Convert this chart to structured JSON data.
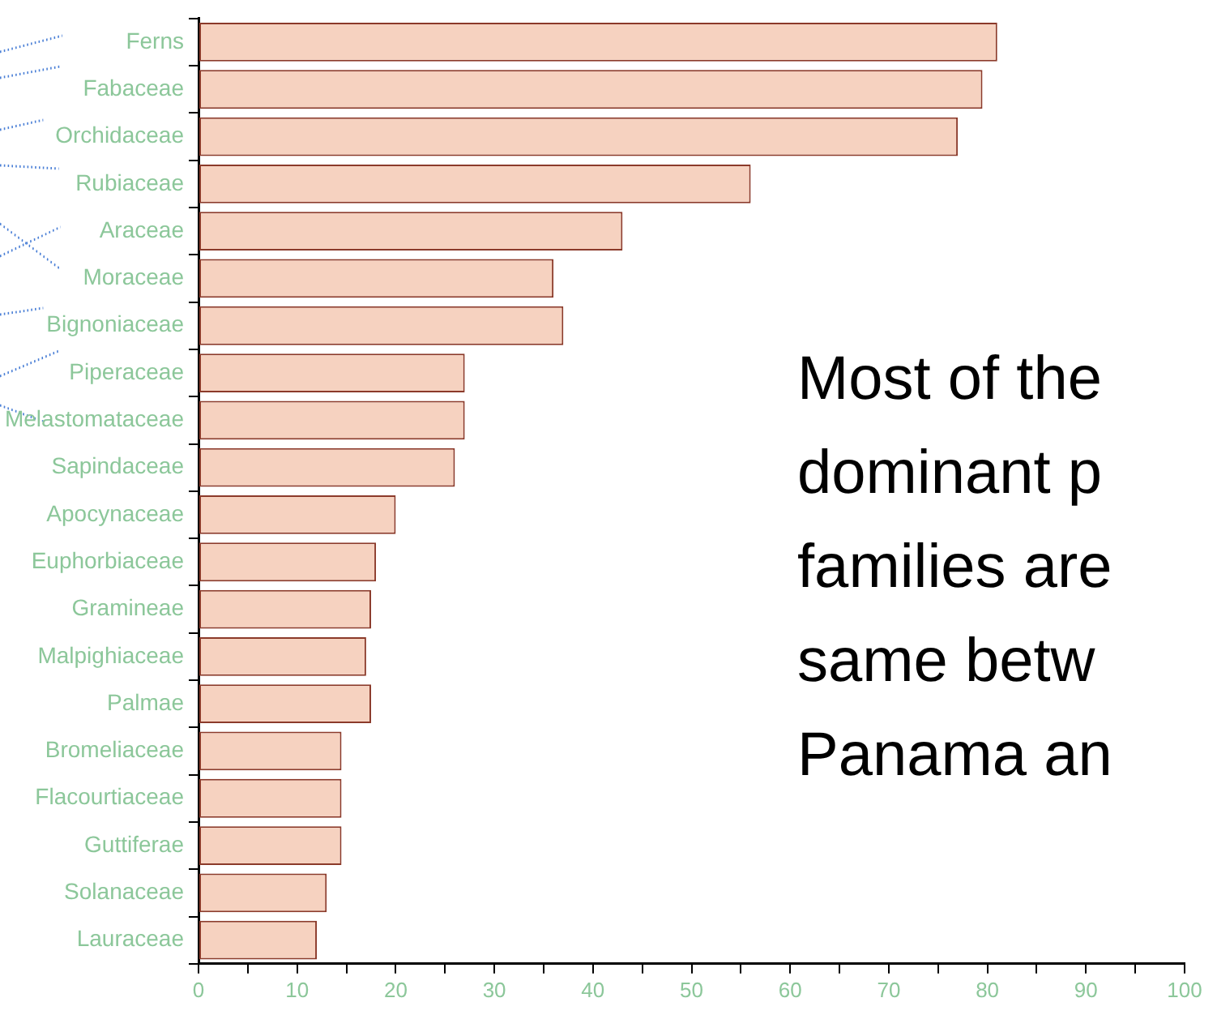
{
  "chart_data": {
    "type": "bar",
    "orientation": "horizontal",
    "categories": [
      "Ferns",
      "Fabaceae",
      "Orchidaceae",
      "Rubiaceae",
      "Araceae",
      "Moraceae",
      "Bignoniaceae",
      "Piperaceae",
      "Melastomataceae",
      "Sapindaceae",
      "Apocynaceae",
      "Euphorbiaceae",
      "Gramineae",
      "Malpighiaceae",
      "Palmae",
      "Bromeliaceae",
      "Flacourtiaceae",
      "Guttiferae",
      "Solanaceae",
      "Lauraceae"
    ],
    "values": [
      81,
      79.5,
      77,
      56,
      43,
      36,
      37,
      27,
      27,
      26,
      20,
      18,
      17.5,
      17,
      17.5,
      14.5,
      14.5,
      14.5,
      13,
      12
    ],
    "color": "#f6d2c0",
    "xlim": [
      0,
      100
    ],
    "xticks": [
      0,
      {
        "value": 5,
        "label": null
      },
      10,
      {
        "value": 15,
        "label": null
      },
      20,
      {
        "value": 25,
        "label": null
      },
      30,
      {
        "value": 35,
        "label": null
      },
      40,
      {
        "value": 45,
        "label": null
      },
      50,
      {
        "value": 55,
        "label": null
      },
      60,
      {
        "value": 65,
        "label": null
      },
      70,
      {
        "value": 75,
        "label": null
      },
      80,
      {
        "value": 85,
        "label": null
      },
      90,
      {
        "value": 95,
        "label": null
      },
      100
    ],
    "grid": false,
    "annotations": [
      "Most of the",
      "dominant p",
      "families are",
      "same betw",
      "Panama an"
    ]
  }
}
